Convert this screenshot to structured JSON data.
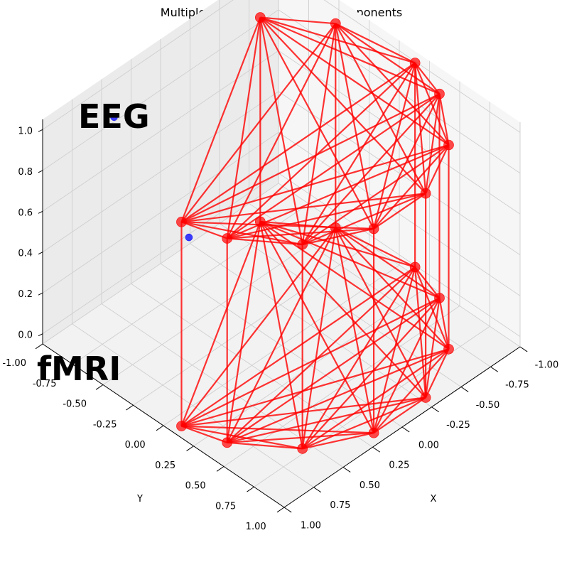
{
  "chart_data": {
    "type": "scatter",
    "subtype": "3d-multiplex-network",
    "title": "Multiplex Network Significant Components",
    "xlabel": "X",
    "ylabel": "Y",
    "zlabel": "",
    "xlim": [
      -1.0,
      1.0
    ],
    "ylim": [
      -1.0,
      1.0
    ],
    "zlim": [
      -0.05,
      1.05
    ],
    "x_ticks": [
      "-1.00",
      "-0.75",
      "-0.50",
      "-0.25",
      "0.00",
      "0.25",
      "0.50",
      "0.75",
      "1.00"
    ],
    "y_ticks": [
      "-1.00",
      "-0.75",
      "-0.50",
      "-0.25",
      "0.00",
      "0.25",
      "0.50",
      "0.75",
      "1.00"
    ],
    "z_ticks": [
      "0.0",
      "0.2",
      "0.4",
      "0.6",
      "0.8",
      "1.0"
    ],
    "grid": true,
    "view": {
      "elev": 30,
      "azim": 45
    },
    "layers": [
      {
        "name": "EEG",
        "z": 1.0
      },
      {
        "name": "fMRI",
        "z": 0.0
      }
    ],
    "significant_nodes": [
      {
        "x": 0.99,
        "y": 0.14
      },
      {
        "x": 0.9,
        "y": 0.43
      },
      {
        "x": 0.62,
        "y": 0.78
      },
      {
        "x": 0.22,
        "y": 0.98
      },
      {
        "x": -0.22,
        "y": 0.98
      },
      {
        "x": -0.62,
        "y": 0.78
      },
      {
        "x": -0.9,
        "y": 0.43
      },
      {
        "x": -0.99,
        "y": 0.14
      },
      {
        "x": -0.9,
        "y": -0.43
      },
      {
        "x": -0.62,
        "y": -0.78
      }
    ],
    "other_nodes": [
      {
        "x": 0.62,
        "y": -0.78
      },
      {
        "x": -0.22,
        "y": -0.98
      }
    ],
    "node_color_significant": "#ff0000",
    "node_color_other": "#0000ff",
    "edge_color": "#ff0000",
    "intra_layer_edges": "complete graph among significant nodes in each layer",
    "inter_layer_edges": "one vertical link per significant node between EEG and fMRI"
  }
}
